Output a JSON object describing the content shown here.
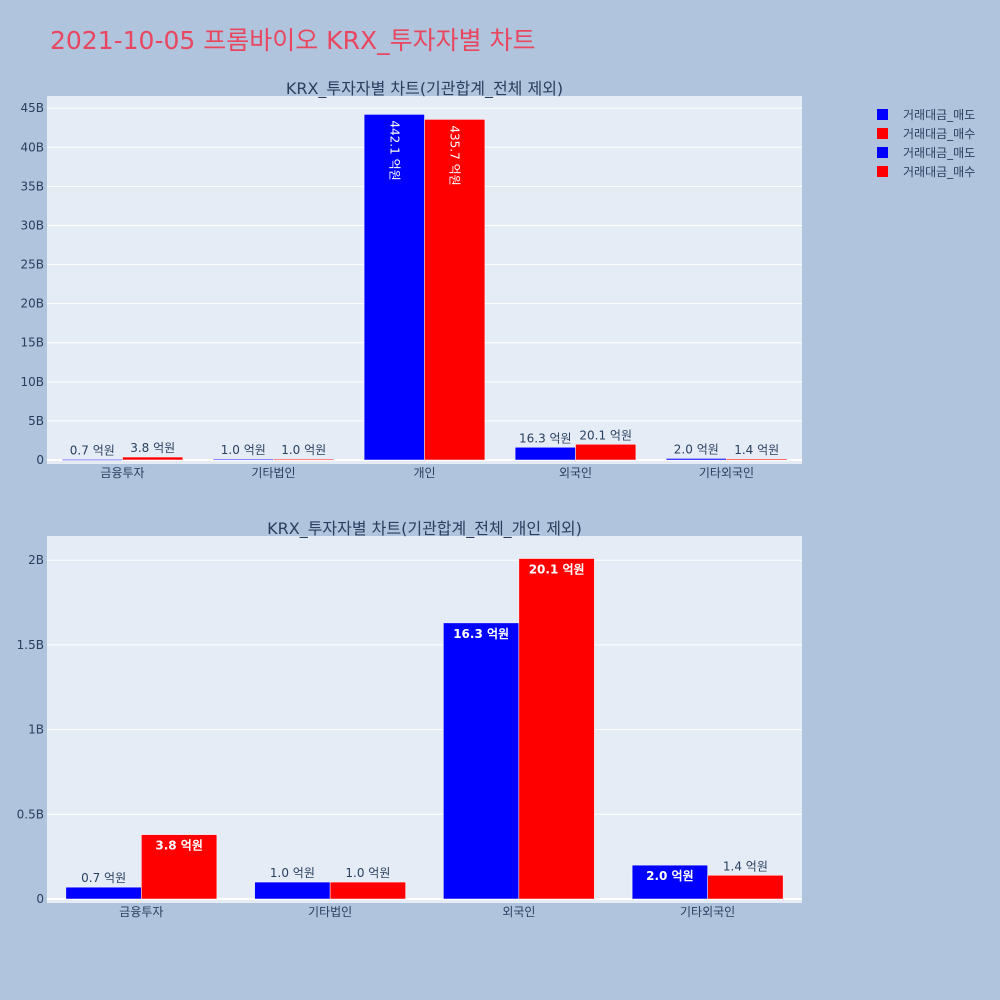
{
  "title": "2021-10-05 프롬바이오 KRX_투자자별 차트",
  "colors": {
    "sell": "#0000ff",
    "buy": "#ff0000",
    "plot_bg": "#e5ecf6",
    "page_bg": "#b0c4de"
  },
  "legend": {
    "position": "top-right",
    "entries": [
      {
        "label": "거래대금_매도",
        "color": "#0000ff"
      },
      {
        "label": "거래대금_매수",
        "color": "#ff0000"
      },
      {
        "label": "거래대금_매도",
        "color": "#0000ff"
      },
      {
        "label": "거래대금_매수",
        "color": "#ff0000"
      }
    ]
  },
  "chart_data": [
    {
      "type": "bar",
      "title": "KRX_투자자별 차트(기관합계_전체 제외)",
      "categories": [
        "금융투자",
        "기타법인",
        "개인",
        "외국인",
        "기타외국인"
      ],
      "ylim": [
        0,
        46500000000
      ],
      "yticks": [
        0,
        5000000000,
        10000000000,
        15000000000,
        20000000000,
        25000000000,
        30000000000,
        35000000000,
        40000000000,
        45000000000
      ],
      "ytick_labels": [
        "0",
        "5B",
        "10B",
        "15B",
        "20B",
        "25B",
        "30B",
        "35B",
        "40B",
        "45B"
      ],
      "grid": true,
      "series": [
        {
          "name": "거래대금_매도",
          "values": [
            70000000,
            100000000,
            44210000000,
            1630000000,
            200000000
          ],
          "labels": [
            "0.7 억원",
            "1.0 억원",
            "442.1 억원",
            "16.3 억원",
            "2.0 억원"
          ]
        },
        {
          "name": "거래대금_매수",
          "values": [
            380000000,
            100000000,
            43570000000,
            2010000000,
            140000000
          ],
          "labels": [
            "3.8 억원",
            "1.0 억원",
            "435.7 억원",
            "20.1 억원",
            "1.4 억원"
          ]
        }
      ]
    },
    {
      "type": "bar",
      "title": "KRX_투자자별 차트(기관합계_전체_개인 제외)",
      "categories": [
        "금융투자",
        "기타법인",
        "외국인",
        "기타외국인"
      ],
      "ylim": [
        0,
        2140000000
      ],
      "yticks": [
        0,
        500000000,
        1000000000,
        1500000000,
        2000000000
      ],
      "ytick_labels": [
        "0",
        "0.5B",
        "1B",
        "1.5B",
        "2B"
      ],
      "grid": true,
      "series": [
        {
          "name": "거래대금_매도",
          "values": [
            70000000,
            100000000,
            1630000000,
            200000000
          ],
          "labels": [
            "0.7 억원",
            "1.0 억원",
            "16.3 억원",
            "2.0 억원"
          ]
        },
        {
          "name": "거래대금_매수",
          "values": [
            380000000,
            100000000,
            2010000000,
            140000000
          ],
          "labels": [
            "3.8 억원",
            "1.0 억원",
            "20.1 억원",
            "1.4 억원"
          ]
        }
      ]
    }
  ]
}
